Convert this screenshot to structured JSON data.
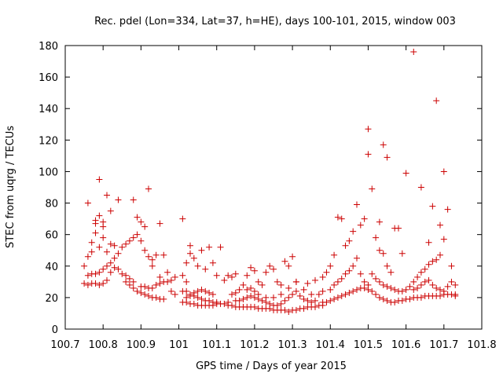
{
  "chart_data": {
    "type": "scatter",
    "title": "Rec. pdel (Lon=334, Lat=37, h=HE), days 100-101, 2015, window 003",
    "xlabel": "GPS time / Days of year 2015",
    "ylabel": "STEC from uqrg / TECUs",
    "xlim": [
      100.7,
      101.8
    ],
    "ylim": [
      0,
      180
    ],
    "x_ticks": [
      100.7,
      100.8,
      100.9,
      101,
      101.1,
      101.2,
      101.3,
      101.4,
      101.5,
      101.6,
      101.7,
      101.8
    ],
    "x_tick_labels": [
      "100.7",
      "100.8",
      "100.9",
      "101",
      "101.1",
      "101.2",
      "101.3",
      "101.4",
      "101.5",
      "101.6",
      "101.7",
      "101.8"
    ],
    "y_ticks": [
      0,
      20,
      40,
      60,
      80,
      100,
      120,
      140,
      160,
      180
    ],
    "y_tick_labels": [
      "0",
      "20",
      "40",
      "60",
      "80",
      "100",
      "120",
      "140",
      "160",
      "180"
    ],
    "grid": false,
    "marker": "+",
    "color": "#cc0000",
    "points": [
      [
        100.75,
        40
      ],
      [
        100.76,
        34
      ],
      [
        100.76,
        46
      ],
      [
        100.77,
        49
      ],
      [
        100.77,
        55
      ],
      [
        100.78,
        61
      ],
      [
        100.78,
        69
      ],
      [
        100.79,
        72
      ],
      [
        100.79,
        52
      ],
      [
        100.8,
        58
      ],
      [
        100.8,
        65
      ],
      [
        100.81,
        49
      ],
      [
        100.82,
        54
      ],
      [
        100.82,
        75
      ],
      [
        100.83,
        53
      ],
      [
        100.84,
        82
      ],
      [
        100.76,
        80
      ],
      [
        100.79,
        95
      ],
      [
        100.81,
        85
      ],
      [
        100.78,
        67
      ],
      [
        100.8,
        68
      ],
      [
        100.75,
        29
      ],
      [
        100.76,
        28
      ],
      [
        100.77,
        29
      ],
      [
        100.78,
        29
      ],
      [
        100.79,
        28
      ],
      [
        100.8,
        29
      ],
      [
        100.81,
        31
      ],
      [
        100.82,
        36
      ],
      [
        100.83,
        39
      ],
      [
        100.84,
        38
      ],
      [
        100.85,
        35
      ],
      [
        100.86,
        34
      ],
      [
        100.87,
        32
      ],
      [
        100.88,
        30
      ],
      [
        100.77,
        35
      ],
      [
        100.78,
        35
      ],
      [
        100.79,
        36
      ],
      [
        100.8,
        38
      ],
      [
        100.81,
        40
      ],
      [
        100.82,
        42
      ],
      [
        100.83,
        45
      ],
      [
        100.84,
        48
      ],
      [
        100.85,
        52
      ],
      [
        100.86,
        54
      ],
      [
        100.87,
        56
      ],
      [
        100.88,
        58
      ],
      [
        100.89,
        60
      ],
      [
        100.9,
        56
      ],
      [
        100.91,
        50
      ],
      [
        100.92,
        46
      ],
      [
        100.93,
        44
      ],
      [
        100.86,
        30
      ],
      [
        100.87,
        28
      ],
      [
        100.88,
        26
      ],
      [
        100.89,
        24
      ],
      [
        100.9,
        23
      ],
      [
        100.91,
        22
      ],
      [
        100.92,
        21
      ],
      [
        100.93,
        20
      ],
      [
        100.94,
        20
      ],
      [
        100.95,
        19
      ],
      [
        100.96,
        19
      ],
      [
        100.9,
        27
      ],
      [
        100.91,
        27
      ],
      [
        100.92,
        26
      ],
      [
        100.93,
        26
      ],
      [
        100.94,
        28
      ],
      [
        100.95,
        29
      ],
      [
        100.96,
        30
      ],
      [
        100.97,
        30
      ],
      [
        100.98,
        31
      ],
      [
        100.88,
        82
      ],
      [
        100.89,
        71
      ],
      [
        100.9,
        68
      ],
      [
        100.91,
        65
      ],
      [
        100.92,
        89
      ],
      [
        100.95,
        67
      ],
      [
        100.96,
        47
      ],
      [
        100.94,
        47
      ],
      [
        100.93,
        40
      ],
      [
        100.95,
        33
      ],
      [
        100.97,
        36
      ],
      [
        100.98,
        24
      ],
      [
        100.99,
        22
      ],
      [
        100.99,
        33
      ],
      [
        101.01,
        70
      ],
      [
        101.01,
        34
      ],
      [
        101.02,
        30
      ],
      [
        101.02,
        42
      ],
      [
        101.03,
        53
      ],
      [
        101.03,
        48
      ],
      [
        101.04,
        45
      ],
      [
        101.05,
        40
      ],
      [
        101.06,
        50
      ],
      [
        101.07,
        38
      ],
      [
        101.08,
        52
      ],
      [
        101.09,
        42
      ],
      [
        101.1,
        34
      ],
      [
        101.11,
        52
      ],
      [
        101.12,
        31
      ],
      [
        101.13,
        34
      ],
      [
        101.14,
        33
      ],
      [
        101.15,
        35
      ],
      [
        101.01,
        24
      ],
      [
        101.02,
        24
      ],
      [
        101.03,
        22
      ],
      [
        101.04,
        21
      ],
      [
        101.05,
        20
      ],
      [
        101.06,
        19
      ],
      [
        101.07,
        18
      ],
      [
        101.08,
        18
      ],
      [
        101.09,
        17
      ],
      [
        101.1,
        17
      ],
      [
        101.11,
        16
      ],
      [
        101.12,
        16
      ],
      [
        101.13,
        17
      ],
      [
        101.01,
        17
      ],
      [
        101.02,
        17
      ],
      [
        101.03,
        16
      ],
      [
        101.04,
        16
      ],
      [
        101.05,
        15
      ],
      [
        101.06,
        15
      ],
      [
        101.07,
        15
      ],
      [
        101.08,
        15
      ],
      [
        101.09,
        15
      ],
      [
        101.1,
        16
      ],
      [
        101.02,
        20
      ],
      [
        101.03,
        21
      ],
      [
        101.04,
        23
      ],
      [
        101.05,
        24
      ],
      [
        101.06,
        25
      ],
      [
        101.07,
        24
      ],
      [
        101.08,
        23
      ],
      [
        101.09,
        22
      ],
      [
        101.14,
        22
      ],
      [
        101.15,
        23
      ],
      [
        101.16,
        25
      ],
      [
        101.17,
        28
      ],
      [
        101.18,
        34
      ],
      [
        101.19,
        39
      ],
      [
        101.2,
        37
      ],
      [
        101.21,
        30
      ],
      [
        101.22,
        28
      ],
      [
        101.23,
        36
      ],
      [
        101.24,
        40
      ],
      [
        101.25,
        38
      ],
      [
        101.26,
        30
      ],
      [
        101.27,
        28
      ],
      [
        101.28,
        43
      ],
      [
        101.29,
        40
      ],
      [
        101.3,
        46
      ],
      [
        101.31,
        30
      ],
      [
        101.13,
        15
      ],
      [
        101.14,
        15
      ],
      [
        101.15,
        14
      ],
      [
        101.16,
        14
      ],
      [
        101.17,
        14
      ],
      [
        101.18,
        14
      ],
      [
        101.19,
        14
      ],
      [
        101.2,
        14
      ],
      [
        101.21,
        13
      ],
      [
        101.22,
        13
      ],
      [
        101.23,
        13
      ],
      [
        101.24,
        13
      ],
      [
        101.25,
        12
      ],
      [
        101.26,
        12
      ],
      [
        101.27,
        12
      ],
      [
        101.28,
        12
      ],
      [
        101.29,
        11
      ],
      [
        101.3,
        12
      ],
      [
        101.31,
        12
      ],
      [
        101.32,
        13
      ],
      [
        101.33,
        13
      ],
      [
        101.34,
        14
      ],
      [
        101.35,
        14
      ],
      [
        101.36,
        14
      ],
      [
        101.37,
        15
      ],
      [
        101.38,
        15
      ],
      [
        101.15,
        18
      ],
      [
        101.16,
        18
      ],
      [
        101.17,
        19
      ],
      [
        101.18,
        20
      ],
      [
        101.19,
        21
      ],
      [
        101.2,
        20
      ],
      [
        101.21,
        19
      ],
      [
        101.22,
        18
      ],
      [
        101.23,
        17
      ],
      [
        101.24,
        16
      ],
      [
        101.25,
        15
      ],
      [
        101.26,
        15
      ],
      [
        101.27,
        16
      ],
      [
        101.28,
        18
      ],
      [
        101.29,
        20
      ],
      [
        101.3,
        22
      ],
      [
        101.31,
        24
      ],
      [
        101.32,
        21
      ],
      [
        101.33,
        19
      ],
      [
        101.34,
        18
      ],
      [
        101.35,
        17
      ],
      [
        101.36,
        18
      ],
      [
        101.18,
        25
      ],
      [
        101.19,
        26
      ],
      [
        101.2,
        24
      ],
      [
        101.21,
        22
      ],
      [
        101.23,
        20
      ],
      [
        101.25,
        20
      ],
      [
        101.27,
        22
      ],
      [
        101.29,
        26
      ],
      [
        101.31,
        30
      ],
      [
        101.33,
        25
      ],
      [
        101.35,
        22
      ],
      [
        101.37,
        22
      ],
      [
        101.38,
        24
      ],
      [
        101.34,
        29
      ],
      [
        101.36,
        31
      ],
      [
        101.38,
        33
      ],
      [
        101.39,
        36
      ],
      [
        101.4,
        40
      ],
      [
        101.41,
        47
      ],
      [
        101.42,
        71
      ],
      [
        101.43,
        70
      ],
      [
        101.44,
        53
      ],
      [
        101.45,
        56
      ],
      [
        101.46,
        62
      ],
      [
        101.47,
        79
      ],
      [
        101.48,
        66
      ],
      [
        101.49,
        70
      ],
      [
        101.38,
        17
      ],
      [
        101.39,
        17
      ],
      [
        101.4,
        18
      ],
      [
        101.41,
        19
      ],
      [
        101.42,
        20
      ],
      [
        101.43,
        21
      ],
      [
        101.44,
        22
      ],
      [
        101.45,
        23
      ],
      [
        101.46,
        24
      ],
      [
        101.47,
        25
      ],
      [
        101.48,
        26
      ],
      [
        101.49,
        26
      ],
      [
        101.5,
        25
      ],
      [
        101.51,
        24
      ],
      [
        101.52,
        22
      ],
      [
        101.53,
        20
      ],
      [
        101.54,
        19
      ],
      [
        101.55,
        18
      ],
      [
        101.56,
        17
      ],
      [
        101.57,
        17
      ],
      [
        101.58,
        18
      ],
      [
        101.4,
        25
      ],
      [
        101.41,
        28
      ],
      [
        101.42,
        30
      ],
      [
        101.43,
        32
      ],
      [
        101.44,
        35
      ],
      [
        101.45,
        37
      ],
      [
        101.46,
        40
      ],
      [
        101.47,
        45
      ],
      [
        101.48,
        35
      ],
      [
        101.49,
        30
      ],
      [
        101.5,
        28
      ],
      [
        101.5,
        127
      ],
      [
        101.5,
        111
      ],
      [
        101.51,
        89
      ],
      [
        101.53,
        68
      ],
      [
        101.54,
        117
      ],
      [
        101.55,
        109
      ],
      [
        101.52,
        58
      ],
      [
        101.53,
        50
      ],
      [
        101.54,
        48
      ],
      [
        101.55,
        40
      ],
      [
        101.56,
        36
      ],
      [
        101.57,
        64
      ],
      [
        101.58,
        64
      ],
      [
        101.59,
        48
      ],
      [
        101.51,
        35
      ],
      [
        101.52,
        32
      ],
      [
        101.53,
        30
      ],
      [
        101.54,
        28
      ],
      [
        101.55,
        27
      ],
      [
        101.56,
        26
      ],
      [
        101.57,
        25
      ],
      [
        101.58,
        24
      ],
      [
        101.59,
        24
      ],
      [
        101.6,
        25
      ],
      [
        101.61,
        27
      ],
      [
        101.62,
        30
      ],
      [
        101.63,
        33
      ],
      [
        101.64,
        36
      ],
      [
        101.65,
        38
      ],
      [
        101.66,
        41
      ],
      [
        101.67,
        43
      ],
      [
        101.68,
        44
      ],
      [
        101.6,
        99
      ],
      [
        101.62,
        176
      ],
      [
        101.64,
        90
      ],
      [
        101.66,
        55
      ],
      [
        101.67,
        78
      ],
      [
        101.68,
        145
      ],
      [
        101.69,
        66
      ],
      [
        101.7,
        100
      ],
      [
        101.71,
        76
      ],
      [
        101.72,
        40
      ],
      [
        101.7,
        57
      ],
      [
        101.69,
        47
      ],
      [
        101.59,
        18
      ],
      [
        101.6,
        19
      ],
      [
        101.61,
        19
      ],
      [
        101.62,
        20
      ],
      [
        101.63,
        20
      ],
      [
        101.64,
        20
      ],
      [
        101.65,
        21
      ],
      [
        101.66,
        21
      ],
      [
        101.67,
        21
      ],
      [
        101.68,
        21
      ],
      [
        101.69,
        21
      ],
      [
        101.7,
        22
      ],
      [
        101.71,
        22
      ],
      [
        101.72,
        22
      ],
      [
        101.73,
        22
      ],
      [
        101.62,
        25
      ],
      [
        101.63,
        26
      ],
      [
        101.64,
        28
      ],
      [
        101.65,
        30
      ],
      [
        101.66,
        31
      ],
      [
        101.67,
        28
      ],
      [
        101.68,
        26
      ],
      [
        101.69,
        25
      ],
      [
        101.7,
        24
      ],
      [
        101.71,
        27
      ],
      [
        101.72,
        30
      ],
      [
        101.73,
        28
      ],
      [
        101.73,
        21
      ]
    ]
  }
}
